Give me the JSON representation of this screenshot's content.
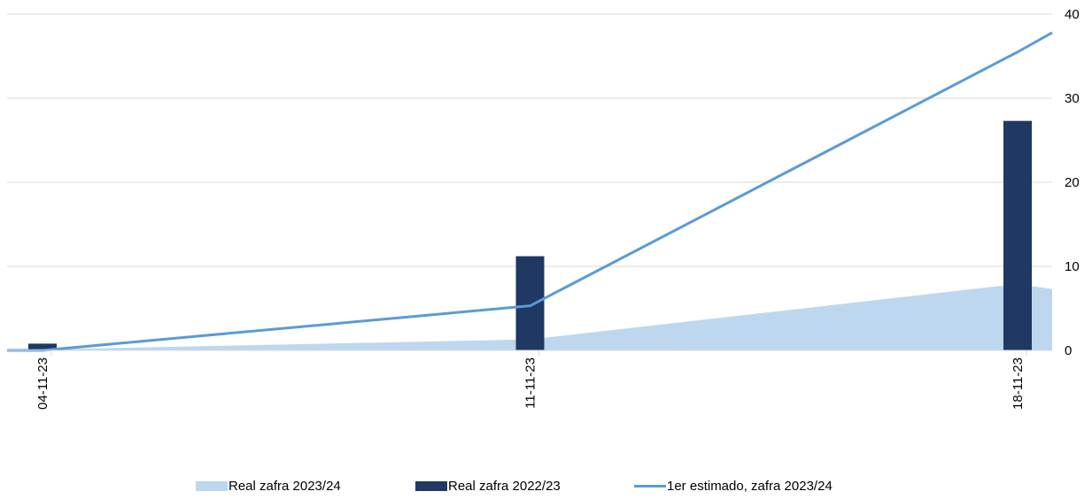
{
  "chart_data": {
    "type": "bar",
    "categories": [
      "04-11-23",
      "11-11-23",
      "18-11-23"
    ],
    "x_range": [
      "04-11-23",
      "18-11-23"
    ],
    "ylim": [
      0,
      40
    ],
    "yticks": [
      "0",
      "10",
      "20",
      "30",
      "40"
    ],
    "y_axis_side": "right",
    "grid": true,
    "legend_position": "bottom",
    "title": "",
    "xlabel": "",
    "ylabel": "",
    "series": [
      {
        "name": "Real zafra 2023/24",
        "type": "area",
        "color": "#bdd7ee",
        "points": [
          {
            "x": "04-11-23",
            "y": 0.1
          },
          {
            "x": "11-11-23",
            "y": 1.3
          },
          {
            "x": "18-11-23",
            "y": 7.9
          },
          {
            "x": "19-11-23",
            "y": 7.3
          }
        ]
      },
      {
        "name": "Real zafra 2022/23",
        "type": "bar",
        "color": "#1f3864",
        "values": [
          0.8,
          11.2,
          27.3
        ]
      },
      {
        "name": "1er estimado, zafra 2023/24",
        "type": "line",
        "color": "#5b9bd5",
        "points": [
          {
            "x": "04-11-23",
            "y": 0
          },
          {
            "x": "11-11-23",
            "y": 5.3
          },
          {
            "x": "18-11-23",
            "y": 35.5
          },
          {
            "x": "19-11-23",
            "y": 37.8
          }
        ]
      }
    ]
  }
}
